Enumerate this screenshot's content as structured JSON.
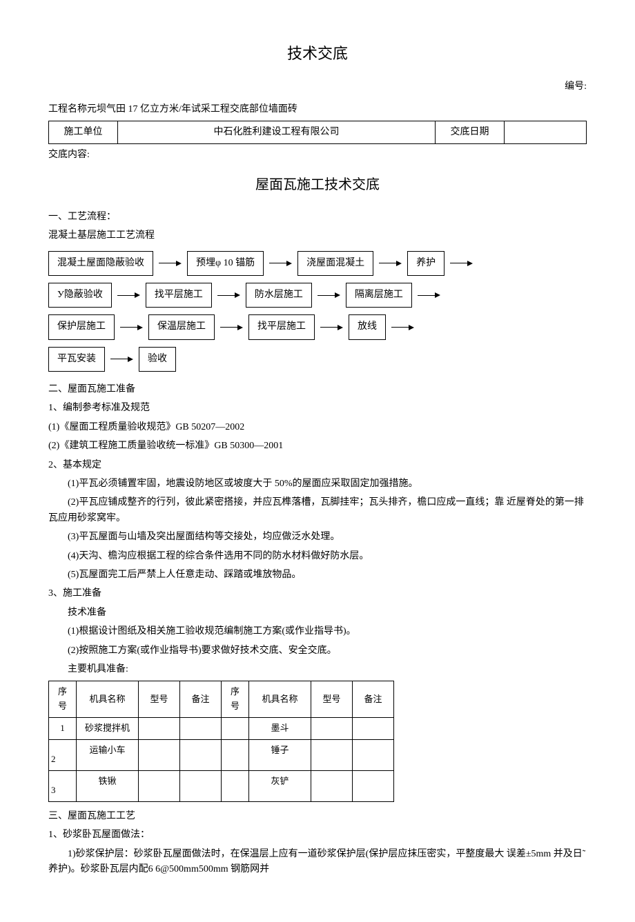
{
  "header": {
    "title": "技术交底",
    "number_label": "编号:",
    "project_line": "工程名称元坝气田 17 亿立方米/年试采工程交底部位墙面砖"
  },
  "info_table": {
    "unit_label": "施工单位",
    "company": "中石化胜利建设工程有限公司",
    "date_label": "交底日期"
  },
  "content_label": "交底内容:",
  "sub_title": "屋面瓦施工技术交底",
  "section1": {
    "heading": "一、工艺流程：",
    "sub": "混凝土基层施工工艺流程"
  },
  "flow": {
    "row1": [
      "混凝土屋面隐蔽验收",
      "预埋φ 10 锚筋",
      "浇屋面混凝土",
      "养护"
    ],
    "row2": [
      "У隐蔽验收",
      "找平层施工",
      "防水层施工",
      "隔离层施工"
    ],
    "row3": [
      "保护层施工",
      "保温层施工",
      "找平层施工",
      "放线"
    ],
    "row4": [
      "平瓦安装",
      "验收"
    ]
  },
  "section2": {
    "heading": "二、屋面瓦施工准备",
    "p1": "1、编制参考标准及规范",
    "p1_1": "(1)《屋面工程质量验收规范》GB 50207—2002",
    "p1_2": "(2)《建筑工程施工质量验收统一标准》GB 50300—2001",
    "p2": "2、基本规定",
    "p2_1": "(1)平瓦必须铺置牢固，地震设防地区或坡度大于 50%的屋面应采取固定加强措施。",
    "p2_2": "(2)平瓦应铺成整齐的行列，彼此紧密搭接，并应瓦榫落槽，瓦脚挂牢；瓦头排齐，檐口应成一直线；靠 近屋脊处的第一排瓦应用砂浆窝牢。",
    "p2_3": "(3)平瓦屋面与山墙及突出屋面结构等交接处，均应做泛水处理。",
    "p2_4": "(4)天沟、檐沟应根据工程的综合条件选用不同的防水材料做好防水层。",
    "p2_5": "(5)瓦屋面完工后严禁上人任意走动、踩踏或堆放物品。",
    "p3": "3、施工准备",
    "p3_sub": "技术准备",
    "p3_1": "(1)根据设计图纸及相关施工验收规范编制施工方案(或作业指导书)。",
    "p3_2": "(2)按照施工方案(或作业指导书)要求做好技术交底、安全交底。",
    "tools_label": "主要机具准备:"
  },
  "tools_table": {
    "headers": [
      "序号",
      "机具名称",
      "型号",
      "备注",
      "序号",
      "机具名称",
      "型号",
      "备注"
    ],
    "rows": [
      {
        "seq1": "1",
        "name1": "砂浆搅拌机",
        "seq2": "",
        "name2": "墨斗"
      },
      {
        "seq1": "2",
        "name1": "运输小车",
        "seq2": "",
        "name2": "锤子"
      },
      {
        "seq1": "3",
        "name1": "铁锹",
        "seq2": "",
        "name2": "灰铲"
      }
    ]
  },
  "section3": {
    "heading": "三、屋面瓦施工工艺",
    "p1": "1、砂浆卧瓦屋面做法：",
    "p1_1": "1)砂浆保护层：砂浆卧瓦屋面做法时，在保温层上应有一道砂浆保护层(保护层应抹压密实，平整度最大 误差±5mm 并及日˜养护)。砂浆卧瓦层内配6 6@500mm500mm 钢筋网并"
  }
}
